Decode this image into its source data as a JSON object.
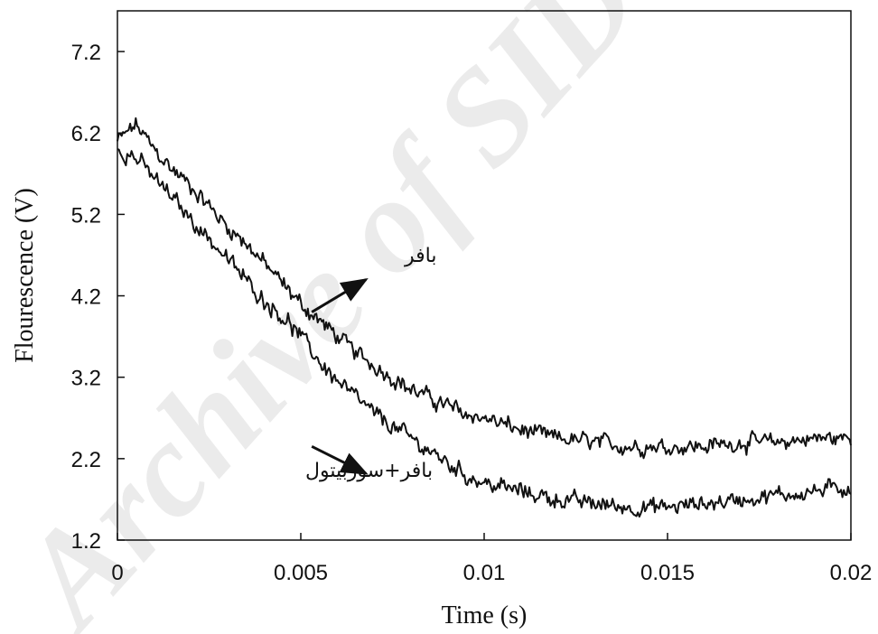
{
  "chart_data": {
    "type": "line",
    "xlabel": "Time (s)",
    "ylabel": "Flourescence (V)",
    "xlim": [
      0,
      0.02
    ],
    "ylim": [
      1.2,
      7.7
    ],
    "x_ticks": [
      0,
      0.005,
      0.01,
      0.015,
      0.02
    ],
    "x_tick_labels": [
      "0",
      "0.005",
      "0.01",
      "0.015",
      "0.02"
    ],
    "y_ticks": [
      1.2,
      2.2,
      3.2,
      4.2,
      5.2,
      6.2,
      7.2
    ],
    "y_tick_labels": [
      "1.2",
      "2.2",
      "3.2",
      "4.2",
      "5.2",
      "6.2",
      "7.2"
    ],
    "grid": false,
    "noise": 0.13,
    "series": [
      {
        "name": "بافر",
        "x": [
          0,
          0.0005,
          0.001,
          0.0015,
          0.002,
          0.0025,
          0.003,
          0.0035,
          0.004,
          0.0045,
          0.005,
          0.0055,
          0.006,
          0.0065,
          0.007,
          0.0075,
          0.008,
          0.0085,
          0.009,
          0.0095,
          0.01,
          0.011,
          0.012,
          0.013,
          0.014,
          0.015,
          0.016,
          0.017,
          0.018,
          0.019,
          0.02
        ],
        "y": [
          6.1,
          6.3,
          6.0,
          5.75,
          5.55,
          5.3,
          5.05,
          4.85,
          4.6,
          4.35,
          4.1,
          3.9,
          3.7,
          3.5,
          3.35,
          3.2,
          3.05,
          2.95,
          2.85,
          2.75,
          2.7,
          2.55,
          2.45,
          2.4,
          2.35,
          2.35,
          2.35,
          2.4,
          2.4,
          2.45,
          2.45
        ]
      },
      {
        "name": "بافر+سوربیتول",
        "x": [
          0,
          0.0005,
          0.001,
          0.0015,
          0.002,
          0.0025,
          0.003,
          0.0035,
          0.004,
          0.0045,
          0.005,
          0.0055,
          0.006,
          0.0065,
          0.007,
          0.0075,
          0.008,
          0.0085,
          0.009,
          0.0095,
          0.01,
          0.011,
          0.012,
          0.013,
          0.014,
          0.015,
          0.016,
          0.017,
          0.018,
          0.019,
          0.02
        ],
        "y": [
          6.0,
          5.9,
          5.65,
          5.4,
          5.15,
          4.9,
          4.65,
          4.4,
          4.15,
          3.95,
          3.7,
          3.4,
          3.15,
          2.95,
          2.75,
          2.6,
          2.45,
          2.3,
          2.15,
          2.0,
          1.9,
          1.8,
          1.7,
          1.65,
          1.6,
          1.6,
          1.65,
          1.7,
          1.75,
          1.8,
          1.85
        ]
      }
    ],
    "annotations": [
      {
        "text": "بافر",
        "series": 0,
        "target": [
          0.0053,
          4.0
        ]
      },
      {
        "text": "بافر+سوربیتول",
        "series": 1,
        "target": [
          0.0053,
          2.35
        ]
      }
    ]
  },
  "watermark": {
    "text": "Archive of SID",
    "color": "#c8c8c8"
  }
}
